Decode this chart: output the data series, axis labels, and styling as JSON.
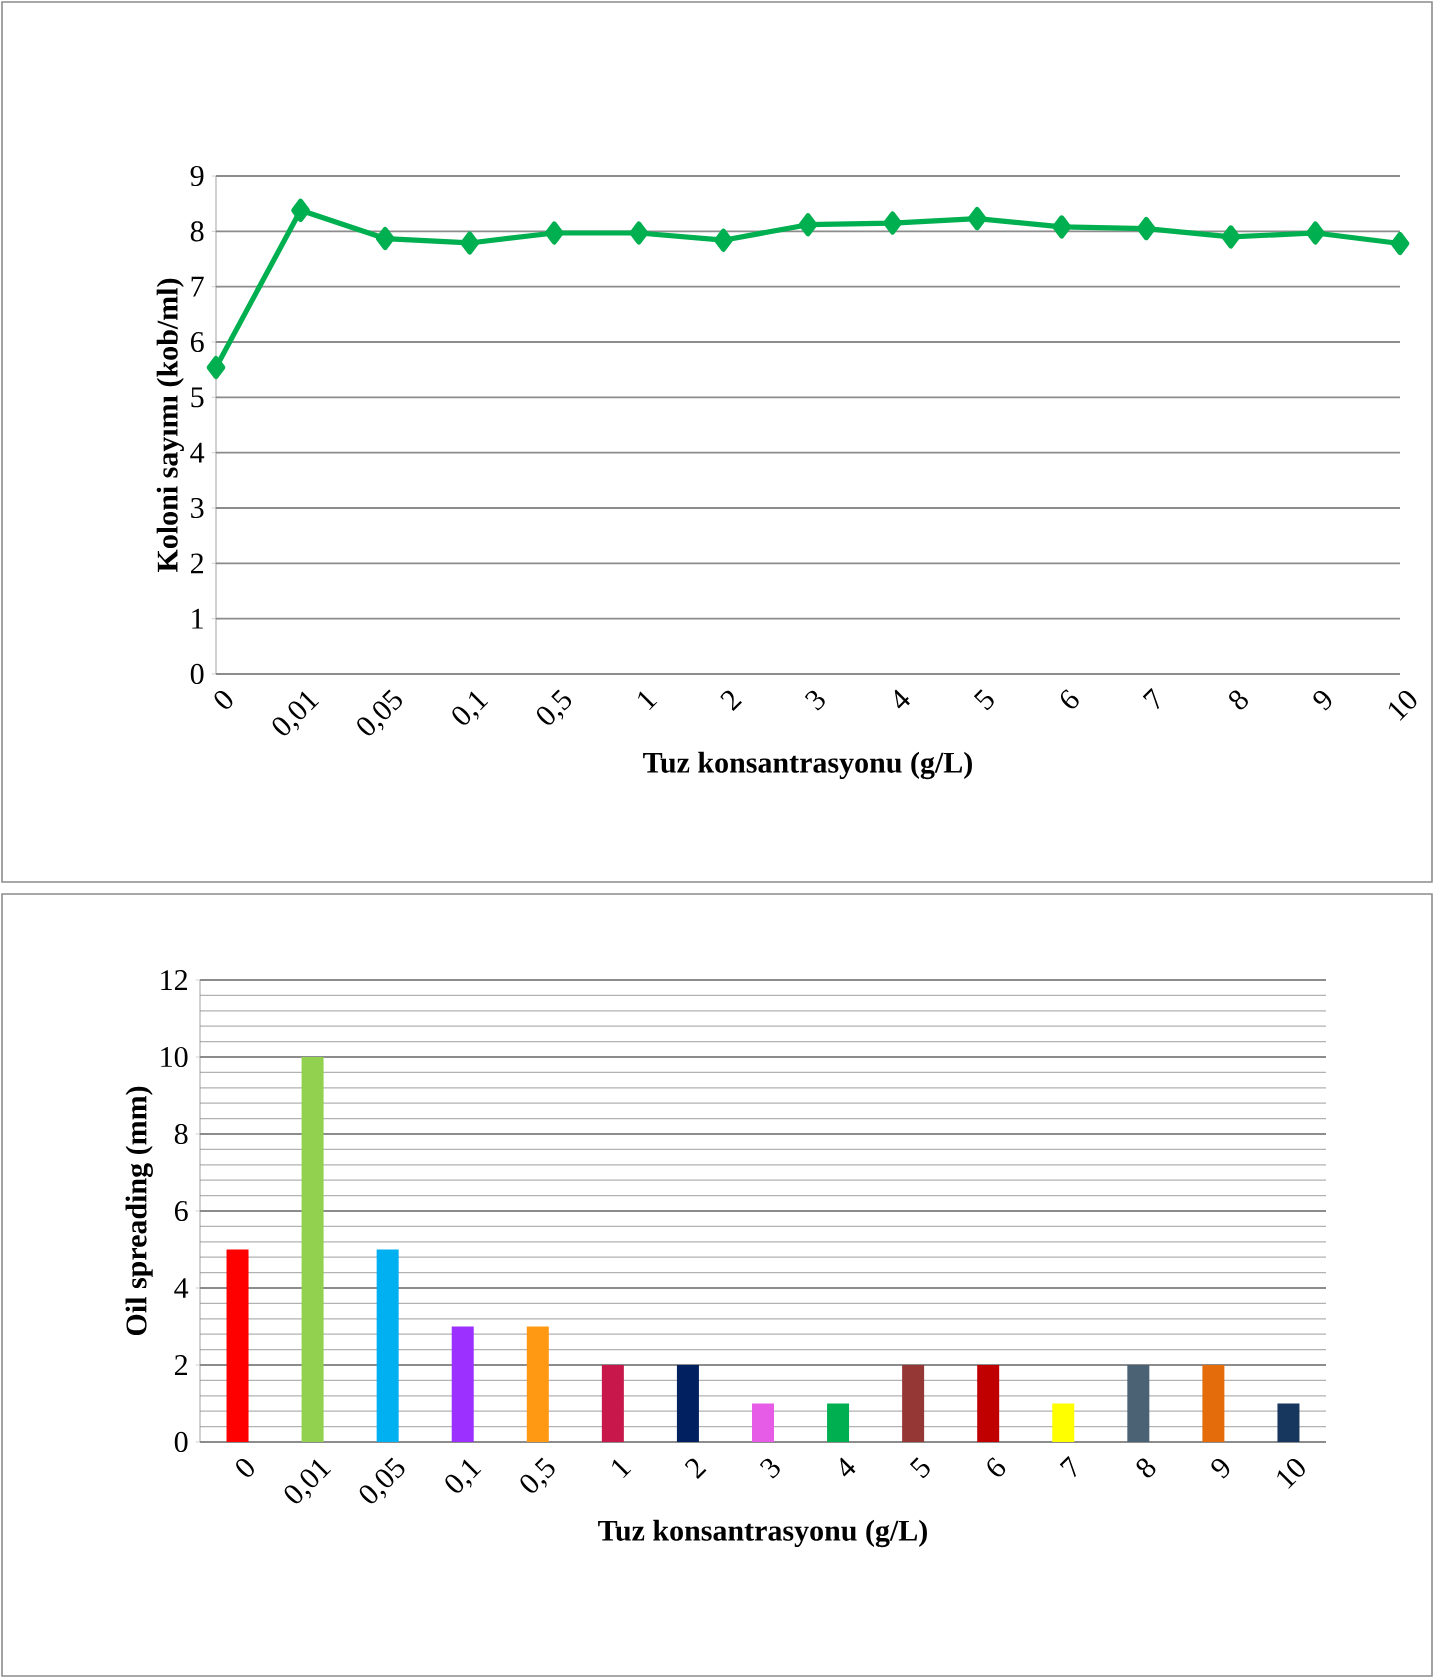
{
  "chart_data": [
    {
      "type": "line",
      "xlabel": "Tuz konsantrasyonu (g/L)",
      "ylabel": "Koloni sayımı (kob/ml)",
      "categories": [
        "0",
        "0,01",
        "0,05",
        "0,1",
        "0,5",
        "1",
        "2",
        "3",
        "4",
        "5",
        "6",
        "7",
        "8",
        "9",
        "10"
      ],
      "series": [
        {
          "color": "#00b050",
          "values": [
            5.54,
            8.38,
            7.87,
            7.79,
            7.97,
            7.97,
            7.84,
            8.12,
            8.15,
            8.23,
            8.08,
            8.05,
            7.9,
            7.97,
            7.78
          ]
        }
      ],
      "ylim": [
        0,
        9
      ],
      "yticks": [
        0,
        1,
        2,
        3,
        4,
        5,
        6,
        7,
        8,
        9
      ],
      "grid": "y",
      "marker": "diamond",
      "line_style": "solid"
    },
    {
      "type": "bar",
      "xlabel": "Tuz konsantrasyonu (g/L)",
      "ylabel": "Oil spreading (mm)",
      "categories": [
        "0",
        "0,01",
        "0,05",
        "0,1",
        "0,5",
        "1",
        "2",
        "3",
        "4",
        "5",
        "6",
        "7",
        "8",
        "9",
        "10"
      ],
      "values": [
        5,
        10,
        5,
        3,
        3,
        2,
        2,
        1,
        1,
        2,
        2,
        1,
        2,
        2,
        1
      ],
      "colors": [
        "#ff0000",
        "#92d050",
        "#00b0f0",
        "#9b30ff",
        "#ff9914",
        "#c8174a",
        "#002060",
        "#e65ce6",
        "#00b050",
        "#953735",
        "#c00000",
        "#ffff00",
        "#4a6274",
        "#e46c0a",
        "#17375e"
      ],
      "ylim": [
        0,
        12
      ],
      "yticks": [
        0,
        2,
        4,
        6,
        8,
        10,
        12
      ],
      "grid": "y"
    }
  ]
}
